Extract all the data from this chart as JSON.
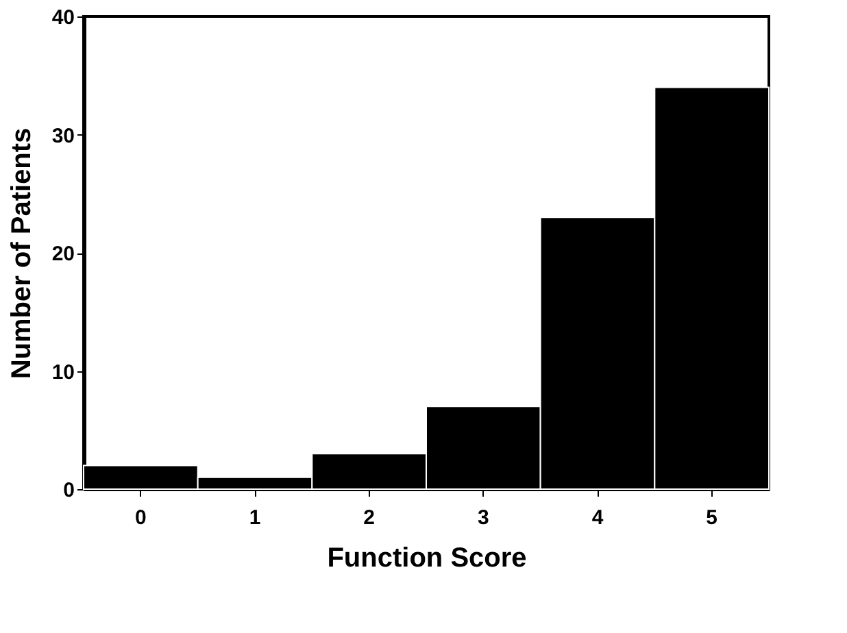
{
  "chart_data": {
    "type": "bar",
    "xlabel": "Function Score",
    "ylabel": "Number of Patients",
    "categories": [
      "0",
      "1",
      "2",
      "3",
      "4",
      "5"
    ],
    "values": [
      2,
      1,
      3,
      7,
      23,
      34
    ],
    "color": "#000000",
    "ylim": [
      0,
      40
    ],
    "yticks": [
      0,
      10,
      20,
      30,
      40
    ],
    "grid": false
  }
}
